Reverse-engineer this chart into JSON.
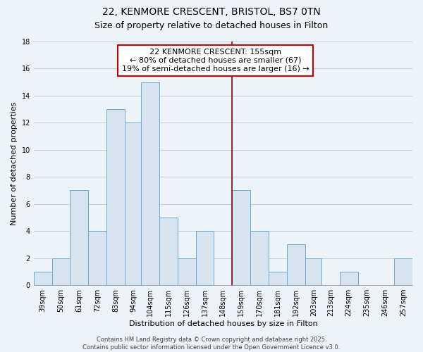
{
  "title": "22, KENMORE CRESCENT, BRISTOL, BS7 0TN",
  "subtitle": "Size of property relative to detached houses in Filton",
  "xlabel": "Distribution of detached houses by size in Filton",
  "ylabel": "Number of detached properties",
  "categories": [
    "39sqm",
    "50sqm",
    "61sqm",
    "72sqm",
    "83sqm",
    "94sqm",
    "104sqm",
    "115sqm",
    "126sqm",
    "137sqm",
    "148sqm",
    "159sqm",
    "170sqm",
    "181sqm",
    "192sqm",
    "203sqm",
    "213sqm",
    "224sqm",
    "235sqm",
    "246sqm",
    "257sqm"
  ],
  "values": [
    1,
    2,
    7,
    4,
    13,
    12,
    15,
    5,
    2,
    4,
    0,
    7,
    4,
    1,
    3,
    2,
    0,
    1,
    0,
    0,
    2
  ],
  "bar_color": "#d6e4f0",
  "bar_edge_color": "#6aaad4",
  "grid_color": "#c0cfe0",
  "background_color": "#eef3f9",
  "plot_bg_color": "#eef3f9",
  "reference_line_color": "#8b0000",
  "annotation_text_line1": "22 KENMORE CRESCENT: 155sqm",
  "annotation_text_line2": "← 80% of detached houses are smaller (67)",
  "annotation_text_line3": "19% of semi-detached houses are larger (16) →",
  "annotation_box_color": "white",
  "annotation_box_edge": "#cc0000",
  "ylim": [
    0,
    18
  ],
  "yticks": [
    0,
    2,
    4,
    6,
    8,
    10,
    12,
    14,
    16,
    18
  ],
  "bin_width": 11,
  "footer_line1": "Contains HM Land Registry data © Crown copyright and database right 2025.",
  "footer_line2": "Contains public sector information licensed under the Open Government Licence v3.0.",
  "title_fontsize": 10,
  "subtitle_fontsize": 9,
  "ylabel_fontsize": 8,
  "xlabel_fontsize": 8,
  "tick_fontsize": 7,
  "annotation_fontsize": 8,
  "footer_fontsize": 6
}
